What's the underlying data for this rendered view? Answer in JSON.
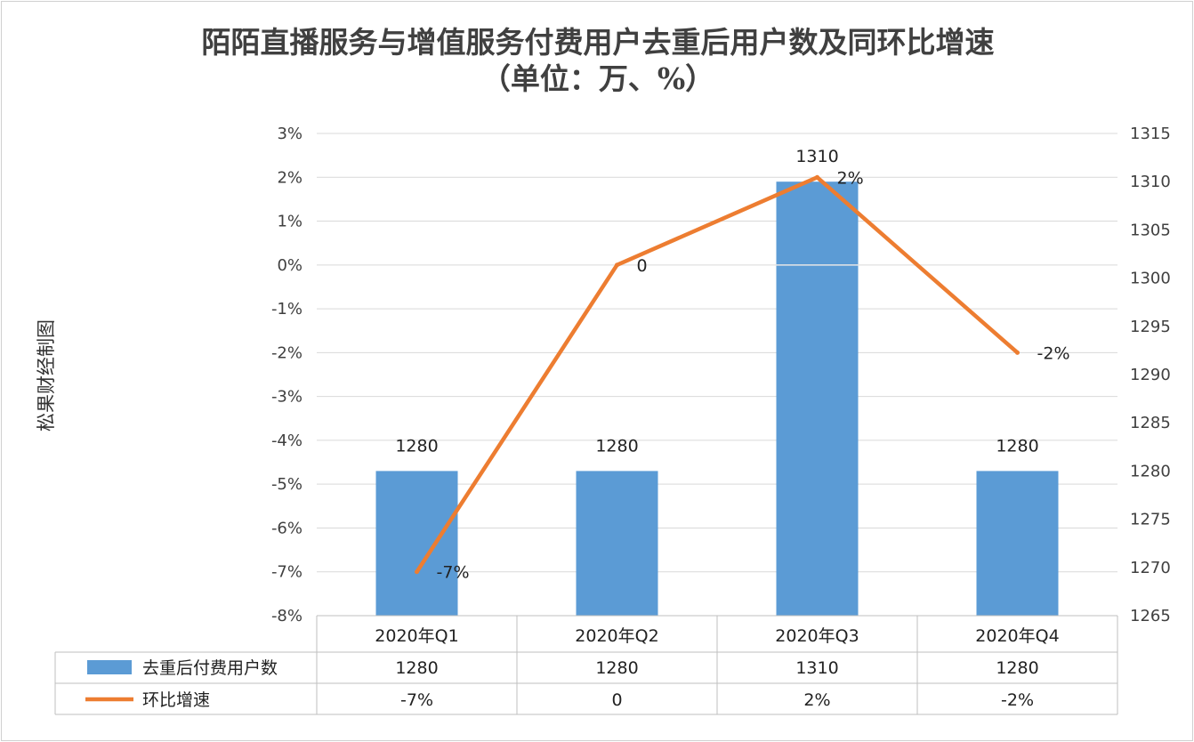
{
  "chart_data": {
    "type": "bar",
    "title": "陌陌直播服务与增值服务付费用户去重后用户数及同环比增速",
    "subtitle": "（单位：万、%）",
    "side_label": "松果财经制图",
    "categories": [
      "2020年Q1",
      "2020年Q2",
      "2020年Q3",
      "2020年Q4"
    ],
    "series": [
      {
        "name": "去重后付费用户数",
        "type": "bar",
        "axis": "right",
        "color": "#5b9bd5",
        "values": [
          1280,
          1280,
          1310,
          1280
        ],
        "labels": [
          "1280",
          "1280",
          "1310",
          "1280"
        ]
      },
      {
        "name": "环比增速",
        "type": "line",
        "axis": "left",
        "color": "#ed7d31",
        "values": [
          -7,
          0,
          2,
          -2
        ],
        "labels": [
          "-7%",
          "0",
          "2%",
          "-2%"
        ]
      }
    ],
    "y_left": {
      "ylim": [
        -8,
        3
      ],
      "ticks": [
        "3%",
        "2%",
        "1%",
        "0%",
        "-1%",
        "-2%",
        "-3%",
        "-4%",
        "-5%",
        "-6%",
        "-7%",
        "-8%"
      ]
    },
    "y_right": {
      "ylim": [
        1265,
        1315
      ],
      "ticks": [
        "1315",
        "1310",
        "1305",
        "1300",
        "1295",
        "1290",
        "1285",
        "1280",
        "1275",
        "1270",
        "1265"
      ]
    },
    "grid": true,
    "data_table": true
  }
}
